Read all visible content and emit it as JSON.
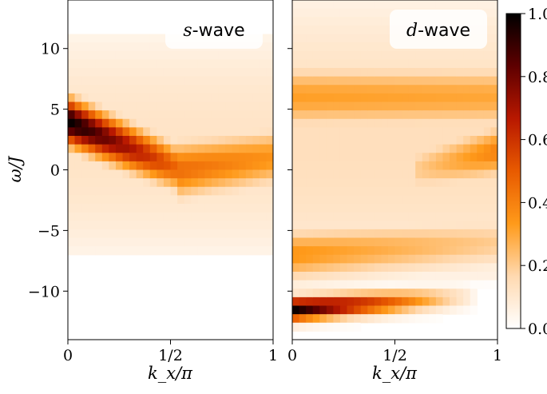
{
  "chart_data": [
    {
      "type": "heatmap",
      "panel_label_math": "s",
      "panel_label_text": "-wave",
      "xlabel": "k_x/π",
      "ylabel": "ω/J",
      "xlim": [
        0,
        1
      ],
      "ylim": [
        -14,
        14
      ],
      "x_ticks": [
        0,
        0.5,
        1
      ],
      "x_tick_labels": [
        "0",
        "1/2",
        "1"
      ],
      "y_ticks": [
        10,
        5,
        0,
        -5,
        -10
      ],
      "y_tick_labels": [
        "10",
        "5",
        "0",
        "−5",
        "−10"
      ],
      "features": [
        {
          "kind": "peak",
          "x_start": 0.0,
          "x_end": 0.55,
          "omega_start": 4.0,
          "omega_end": 0.0,
          "intensity_start": 1.0,
          "intensity_end": 0.45,
          "width": 1.8
        },
        {
          "kind": "branch",
          "x_start": 0.55,
          "x_end": 1.0,
          "omega_start": 0.0,
          "omega_end": 1.0,
          "intensity_start": 0.45,
          "intensity_end": 0.35,
          "width": 2.2
        },
        {
          "kind": "background",
          "omega_min": -7,
          "omega_max": 11,
          "intensity": 0.12
        }
      ]
    },
    {
      "type": "heatmap",
      "panel_label_math": "d",
      "panel_label_text": "-wave",
      "xlabel": "k_x/π",
      "xlim": [
        0,
        1
      ],
      "ylim": [
        -14,
        14
      ],
      "x_ticks": [
        0,
        0.5,
        1
      ],
      "x_tick_labels": [
        "0",
        "1/2",
        "1"
      ],
      "features": [
        {
          "kind": "band",
          "x_start": 0.0,
          "x_end": 0.85,
          "omega_start": -11.5,
          "omega_end": -10.5,
          "intensity_start": 1.0,
          "intensity_end": 0.1,
          "width": 0.9
        },
        {
          "kind": "band",
          "x_start": 0.0,
          "x_end": 1.0,
          "omega_start": 6.0,
          "omega_end": 6.0,
          "intensity_start": 0.32,
          "intensity_end": 0.3,
          "width": 2.5
        },
        {
          "kind": "band",
          "x_start": 0.0,
          "x_end": 1.0,
          "omega_start": -7.0,
          "omega_end": -6.0,
          "intensity_start": 0.35,
          "intensity_end": 0.2,
          "width": 2.0
        },
        {
          "kind": "band",
          "x_start": 0.6,
          "x_end": 1.0,
          "omega_start": 0.0,
          "omega_end": 1.5,
          "intensity_start": 0.2,
          "intensity_end": 0.4,
          "width": 2.0
        },
        {
          "kind": "background",
          "omega_min": -9,
          "omega_max": 14,
          "intensity": 0.14
        }
      ]
    }
  ],
  "colorbar": {
    "cmap": "gist_heat_r",
    "range": [
      0.0,
      1.0
    ],
    "ticks": [
      0.0,
      0.2,
      0.4,
      0.6,
      0.8,
      1.0
    ],
    "tick_labels": [
      "0.0",
      "0.2",
      "0.4",
      "0.6",
      "0.8",
      "1.0"
    ],
    "colors": [
      "#ffffff",
      "#ffd9b0",
      "#ff9a1a",
      "#e85a00",
      "#b81800",
      "#5e0000",
      "#000000"
    ]
  }
}
